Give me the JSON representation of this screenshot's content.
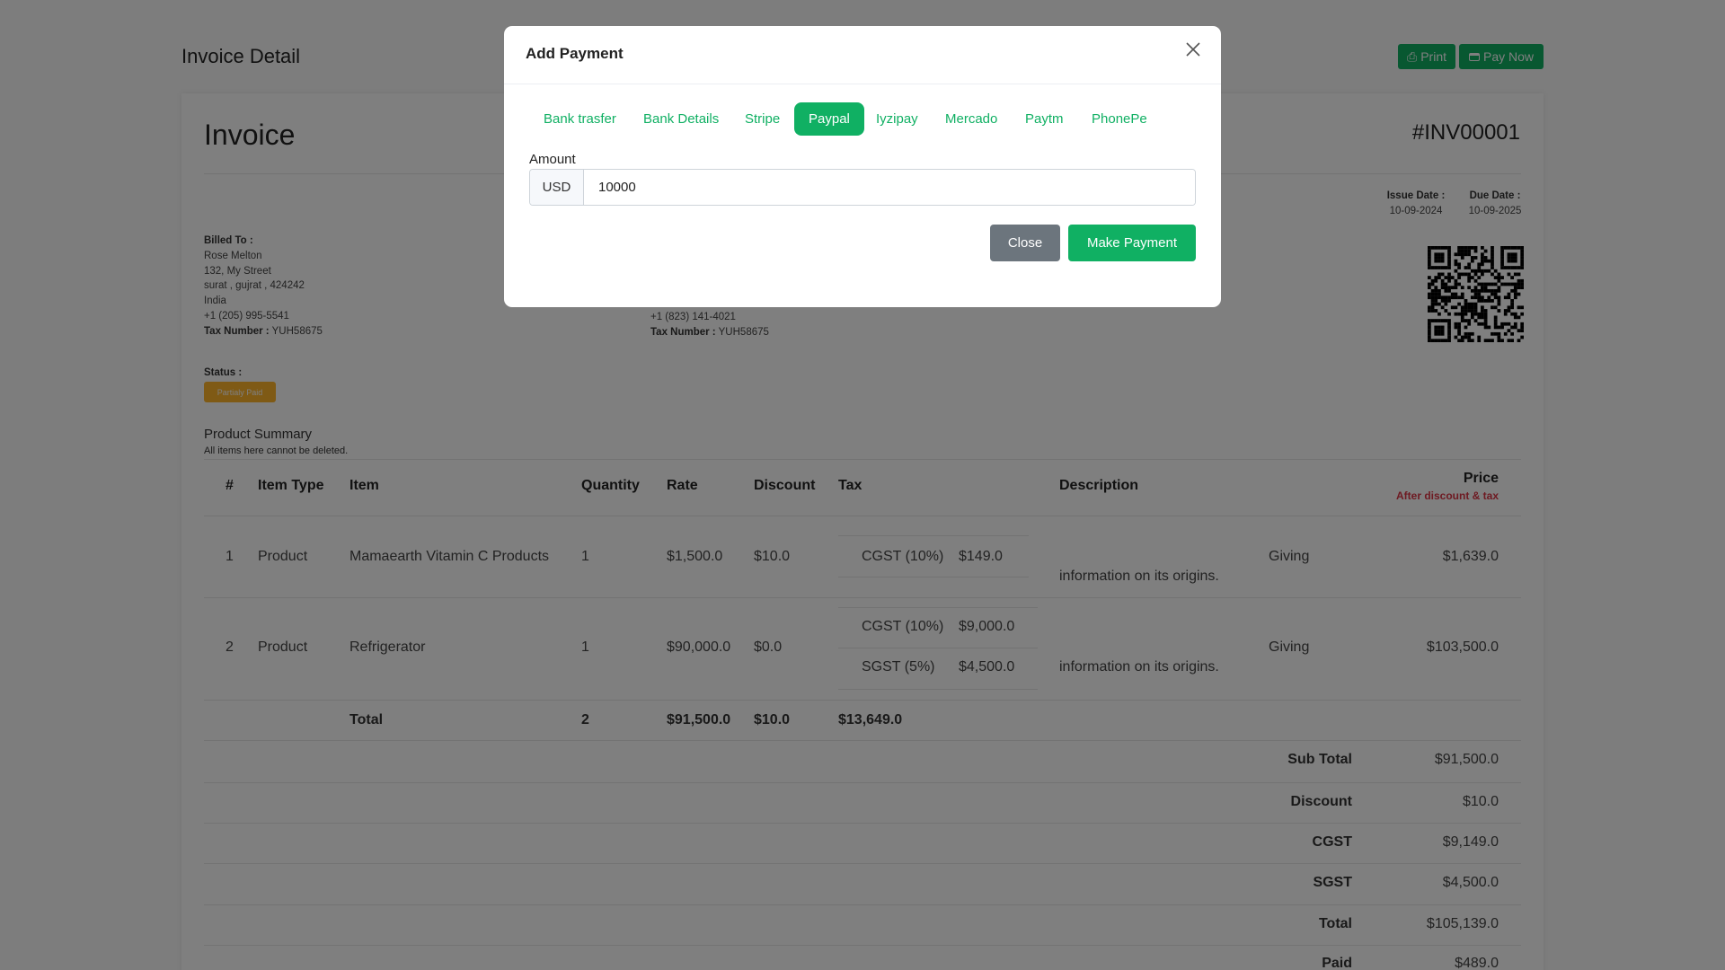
{
  "header": {
    "title": "Invoice Detail",
    "print_label": "Print",
    "pay_now_label": "Pay Now"
  },
  "invoice": {
    "heading": "Invoice",
    "number": "#INV00001",
    "issue_date_label": "Issue Date :",
    "issue_date": "10-09-2024",
    "due_date_label": "Due Date :",
    "due_date": "10-09-2025",
    "billed_to": {
      "label": "Billed To :",
      "name": "Rose Melton",
      "street": "132, My Street",
      "city": "surat , gujrat , 424242",
      "country": "India",
      "phone": "+1 (205) 995-5541",
      "tax_label": "Tax Number :",
      "tax": "YUH58675"
    },
    "seller": {
      "phone": "+1 (823) 141-4021",
      "tax_label": "Tax Number :",
      "tax": "YUH58675"
    },
    "status_label": "Status :",
    "status": "Partialy Paid",
    "status_color": "#ffb42a"
  },
  "products": {
    "title": "Product Summary",
    "subtitle": "All items here cannot be deleted.",
    "columns": [
      "#",
      "Item Type",
      "Item",
      "Quantity",
      "Rate",
      "Discount",
      "Tax",
      "Description",
      "Price"
    ],
    "price_note": "After discount & tax",
    "rows": [
      {
        "num": "1",
        "type": "Product",
        "item": "Mamaearth Vitamin C Products",
        "qty": "1",
        "rate": "$1,500.0",
        "discount": "$10.0",
        "taxes": [
          {
            "name": "CGST (10%)",
            "amount": "$149.0"
          }
        ],
        "desc_a": "Giving",
        "desc_b": "information on its origins.",
        "price": "$1,639.0"
      },
      {
        "num": "2",
        "type": "Product",
        "item": "Refrigerator",
        "qty": "1",
        "rate": "$90,000.0",
        "discount": "$0.0",
        "taxes": [
          {
            "name": "CGST (10%)",
            "amount": "$9,000.0"
          },
          {
            "name": "SGST (5%)",
            "amount": "$4,500.0"
          }
        ],
        "desc_a": "Giving",
        "desc_b": "information on its origins.",
        "price": "$103,500.0"
      }
    ],
    "total": {
      "label": "Total",
      "qty": "2",
      "rate": "$91,500.0",
      "discount": "$10.0",
      "tax": "$13,649.0"
    }
  },
  "summary": [
    {
      "label": "Sub Total",
      "value": "$91,500.0"
    },
    {
      "label": "Discount",
      "value": "$10.0"
    },
    {
      "label": "CGST",
      "value": "$9,149.0"
    },
    {
      "label": "SGST",
      "value": "$4,500.0"
    },
    {
      "label": "Total",
      "value": "$105,139.0"
    },
    {
      "label": "Paid",
      "value": "$489.0"
    }
  ],
  "modal": {
    "title": "Add Payment",
    "tabs": [
      "Bank trasfer",
      "Bank Details",
      "Stripe",
      "Paypal",
      "Iyzipay",
      "Mercado",
      "Paytm",
      "PhonePe"
    ],
    "active_tab": "Paypal",
    "amount_label": "Amount",
    "currency": "USD",
    "amount": "10000",
    "close_label": "Close",
    "submit_label": "Make Payment"
  },
  "colors": {
    "accent": "#10b063",
    "secondary": "#6c757d",
    "price_note": "#dc3545"
  }
}
